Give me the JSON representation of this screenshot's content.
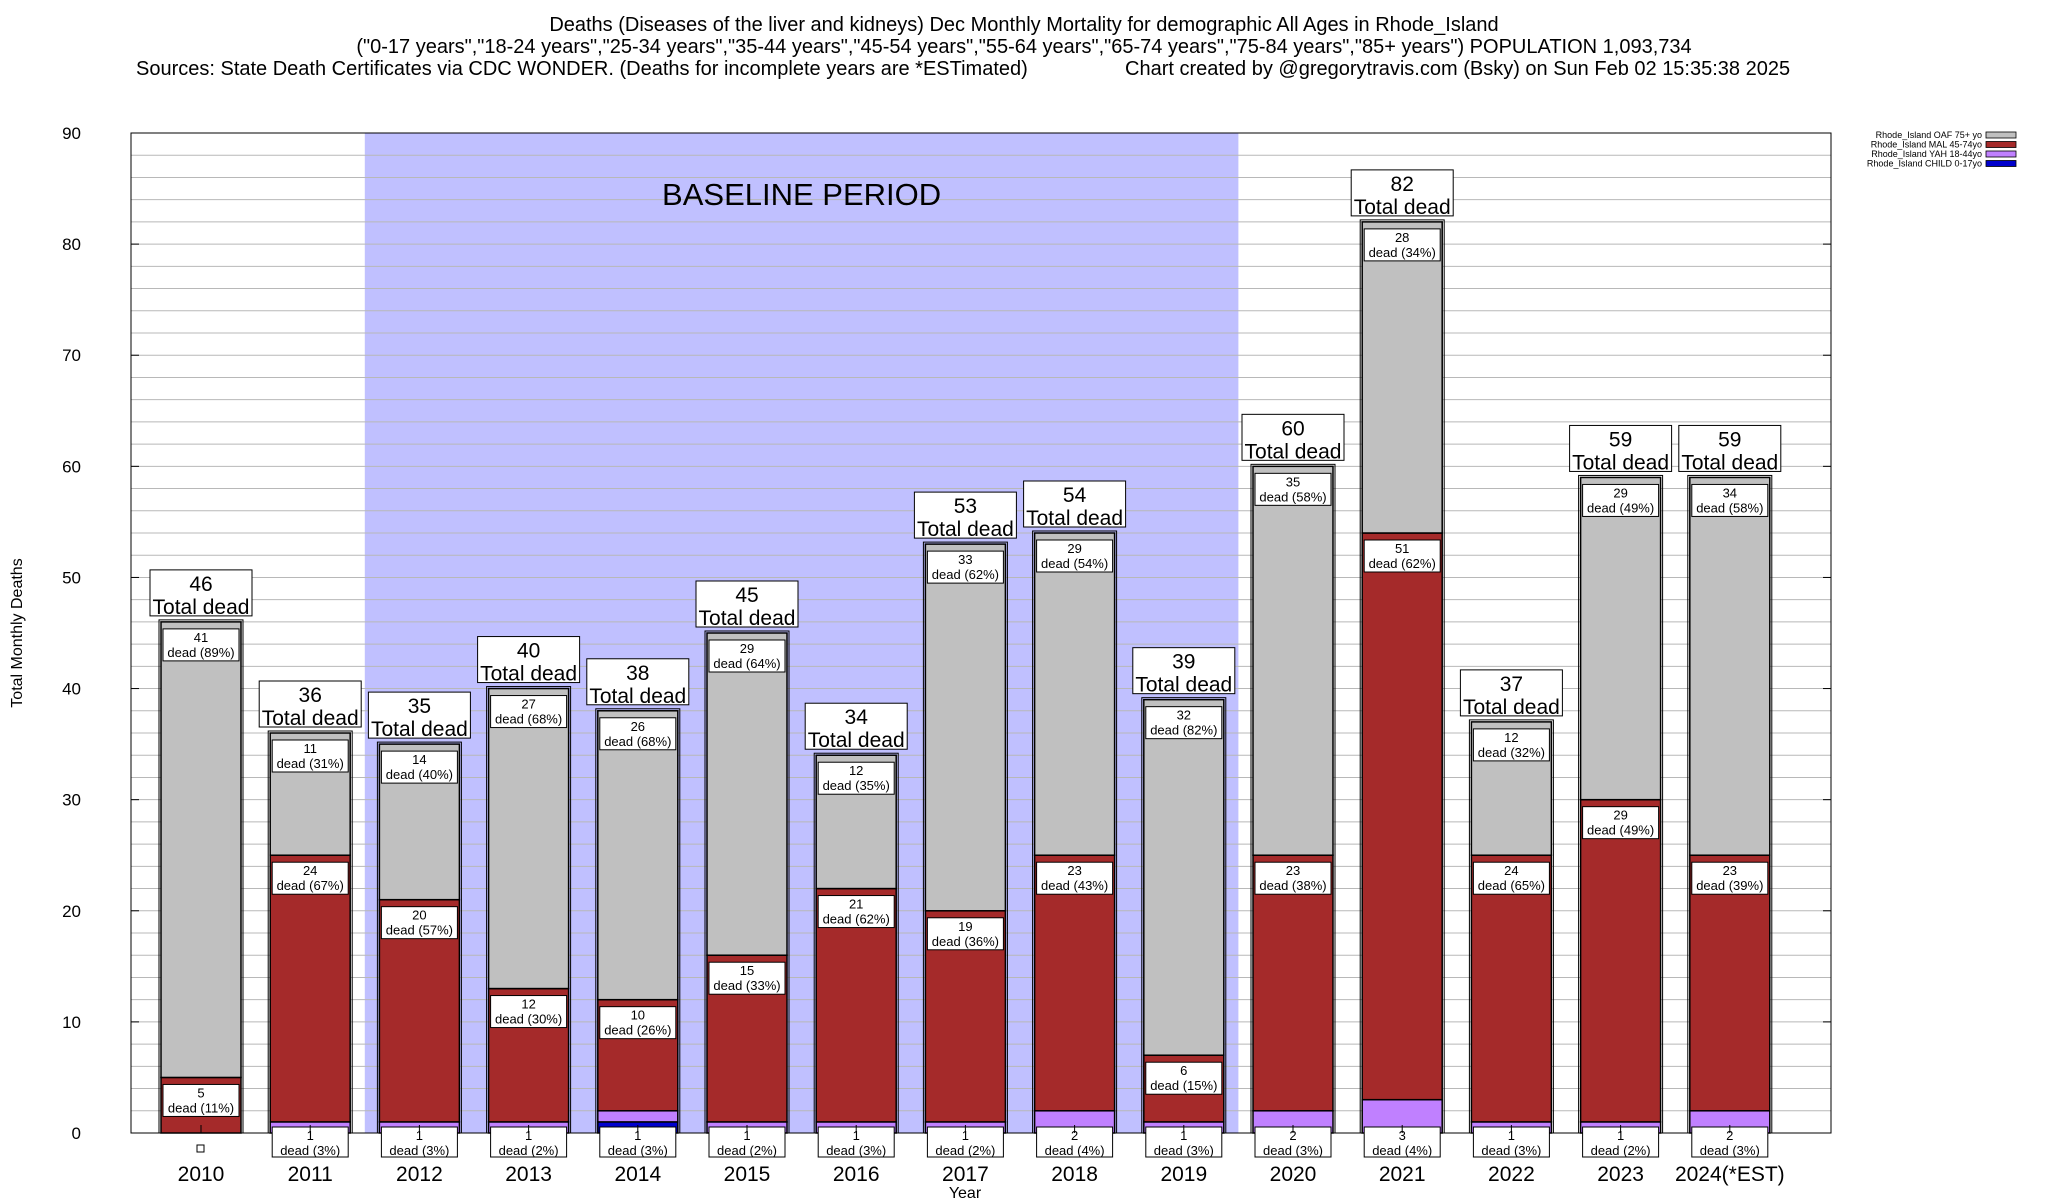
{
  "header": {
    "title_line1": "Deaths (Diseases of the liver and kidneys) Dec Monthly Mortality for demographic All Ages in Rhode_Island",
    "title_line2": "(\"0-17 years\",\"18-24 years\",\"25-34 years\",\"35-44 years\",\"45-54 years\",\"55-64 years\",\"65-74 years\",\"75-84 years\",\"85+ years\") POPULATION 1,093,734",
    "sources": "Sources: State Death Certificates via CDC WONDER. (Deaths for incomplete years are *ESTimated)",
    "credit": "Chart created by @gregorytravis.com (Bsky) on Sun Feb 02 15:35:38 2025"
  },
  "colors": {
    "baseline_band": "#c0c0ff",
    "oaf": "#c0c0c0",
    "mal": "#a52a2a",
    "yah": "#c080ff",
    "child": "#0000cc"
  },
  "chart_data": {
    "type": "bar",
    "stacked": true,
    "ylabel": "Total Monthly Deaths",
    "xlabel": "Year",
    "ylim": [
      0,
      90
    ],
    "yticks": [
      "0",
      "10",
      "20",
      "30",
      "40",
      "50",
      "60",
      "70",
      "80",
      "90"
    ],
    "grid": true,
    "legend_position": "top-right",
    "baseline_label": "BASELINE PERIOD",
    "baseline_range": [
      "2012",
      "2019"
    ],
    "total_caption": "Total dead",
    "dead_word": "dead",
    "categories": [
      "2010",
      "2011",
      "2012",
      "2013",
      "2014",
      "2015",
      "2016",
      "2017",
      "2018",
      "2019",
      "2020",
      "2021",
      "2022",
      "2023",
      "2024(*EST)"
    ],
    "totals": [
      46,
      36,
      35,
      40,
      38,
      45,
      34,
      53,
      54,
      39,
      60,
      82,
      37,
      59,
      59
    ],
    "series": [
      {
        "name": "Rhode_Island CHILD 0-17yo",
        "key": "child",
        "values": [
          0,
          0,
          0,
          0,
          1,
          0,
          0,
          0,
          0,
          0,
          0,
          0,
          0,
          0,
          0
        ],
        "labels": [
          null,
          null,
          null,
          null,
          "1",
          null,
          null,
          null,
          null,
          null,
          null,
          null,
          null,
          null,
          null
        ]
      },
      {
        "name": "Rhode_Island YAH 18-44yo",
        "key": "yah",
        "values": [
          0,
          1,
          1,
          1,
          1,
          1,
          1,
          1,
          2,
          1,
          2,
          3,
          1,
          1,
          2
        ],
        "labels": [
          null,
          "1",
          "1",
          "1",
          "1",
          "1",
          "1",
          "1",
          "2",
          "1",
          "2",
          "3",
          "1",
          "1",
          "2"
        ],
        "pcts": [
          null,
          "(3%)",
          "(3%)",
          "(2%)",
          "(3%)",
          "(2%)",
          "(3%)",
          "(2%)",
          "(4%)",
          "(3%)",
          "(3%)",
          "(4%)",
          "(3%)",
          "(2%)",
          "(3%)"
        ]
      },
      {
        "name": "Rhode_Island MAL 45-74yo",
        "key": "mal",
        "values": [
          5,
          24,
          20,
          12,
          10,
          15,
          21,
          19,
          23,
          6,
          23,
          51,
          24,
          29,
          23
        ],
        "labels": [
          "5",
          "24",
          "20",
          "12",
          "10",
          "15",
          "21",
          "19",
          "23",
          "6",
          "23",
          "51",
          "24",
          "29",
          "23"
        ],
        "pcts": [
          "(11%)",
          "(67%)",
          "(57%)",
          "(30%)",
          "(26%)",
          "(33%)",
          "(62%)",
          "(36%)",
          "(43%)",
          "(15%)",
          "(38%)",
          "(62%)",
          "(65%)",
          "(49%)",
          "(39%)"
        ]
      },
      {
        "name": "Rhode_Island OAF 75+ yo",
        "key": "oaf",
        "values": [
          41,
          11,
          14,
          27,
          26,
          29,
          12,
          33,
          29,
          32,
          35,
          28,
          12,
          29,
          34
        ],
        "labels": [
          "41",
          "11",
          "14",
          "27",
          "26",
          "29",
          "12",
          "33",
          "29",
          "32",
          "35",
          "28",
          "12",
          "29",
          "34"
        ],
        "pcts": [
          "(89%)",
          "(31%)",
          "(40%)",
          "(68%)",
          "(68%)",
          "(64%)",
          "(35%)",
          "(62%)",
          "(54%)",
          "(82%)",
          "(58%)",
          "(34%)",
          "(32%)",
          "(49%)",
          "(58%)"
        ]
      }
    ]
  }
}
